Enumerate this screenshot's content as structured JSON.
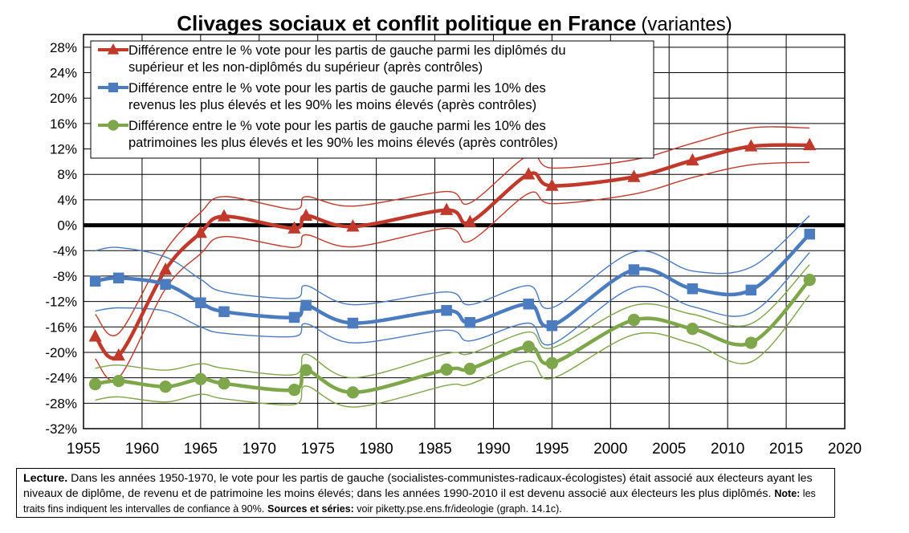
{
  "chart_data": {
    "type": "line",
    "title": "Clivages sociaux et conflit politique en France",
    "subtitle": "(variantes)",
    "xlabel": "",
    "ylabel": "",
    "xlim": [
      1955,
      2020
    ],
    "ylim": [
      -32,
      30
    ],
    "x_ticks": [
      "1955",
      "1960",
      "1965",
      "1970",
      "1975",
      "1980",
      "1985",
      "1990",
      "1995",
      "2000",
      "2005",
      "2010",
      "2015",
      "2020"
    ],
    "y_ticks": [
      "28%",
      "24%",
      "20%",
      "16%",
      "12%",
      "8%",
      "4%",
      "0%",
      "-4%",
      "-8%",
      "-12%",
      "-16%",
      "-20%",
      "-24%",
      "-28%",
      "-32%"
    ],
    "grid": true,
    "legend_position": "top-left",
    "series": [
      {
        "name_line1": "Différence entre le % vote pour les partis de gauche parmi les diplômés du",
        "name_line2": "supérieur et les non-diplômés du supérieur (après contrôles)",
        "color": "#c0392b",
        "marker": "triangle",
        "x": [
          1956,
          1958,
          1962,
          1965,
          1967,
          1973,
          1974,
          1978,
          1986,
          1988,
          1993,
          1995,
          2002,
          2007,
          2012,
          2017
        ],
        "values": [
          -17.5,
          -20.5,
          -7,
          -1.2,
          1.4,
          -0.5,
          1.5,
          -0.2,
          2.4,
          0.5,
          8,
          6.2,
          7.6,
          10.2,
          12.4,
          12.6
        ],
        "ci_upper": [
          -14,
          -17,
          -4,
          2,
          4.5,
          2.5,
          4.5,
          3,
          5.3,
          3.5,
          11,
          9,
          10.3,
          12.9,
          15.3,
          15.3
        ],
        "ci_lower": [
          -21,
          -24,
          -10,
          -4.5,
          -1.8,
          -3.5,
          -1.5,
          -3.4,
          -0.5,
          -2.5,
          5,
          3.4,
          4.9,
          7.5,
          9.5,
          9.9
        ]
      },
      {
        "name_line1": "Différence entre le % vote pour les partis de gauche parmi les 10% des",
        "name_line2": "revenus les plus élevés et les 90% les moins élevés (après contrôles)",
        "color": "#4a7cbf",
        "marker": "square",
        "x": [
          1956,
          1958,
          1962,
          1965,
          1967,
          1973,
          1974,
          1978,
          1986,
          1988,
          1993,
          1995,
          2002,
          2007,
          2012,
          2017
        ],
        "values": [
          -8.8,
          -8.3,
          -9.3,
          -12.2,
          -13.6,
          -14.5,
          -12.6,
          -15.4,
          -13.4,
          -15.3,
          -12.4,
          -15.8,
          -7,
          -10,
          -10.2,
          -1.4
        ],
        "ci_upper": [
          -4,
          -3.5,
          -5,
          -8.5,
          -10.5,
          -11.5,
          -9.5,
          -12.5,
          -10.5,
          -12.5,
          -9.5,
          -13,
          -4.2,
          -7.2,
          -6.6,
          1.5
        ],
        "ci_lower": [
          -13.5,
          -13,
          -13.5,
          -16,
          -17,
          -17.5,
          -15.5,
          -18.5,
          -16.5,
          -18.2,
          -15.4,
          -18.7,
          -9.8,
          -12.8,
          -13.8,
          -4.3
        ]
      },
      {
        "name_line1": "Différence entre le % vote pour les partis de gauche parmi les 10% des",
        "name_line2": "patrimoines les plus élevés et les 90% les moins élevés (après contrôles)",
        "color": "#7ea64a",
        "marker": "circle",
        "x": [
          1956,
          1958,
          1962,
          1965,
          1967,
          1973,
          1974,
          1978,
          1986,
          1988,
          1993,
          1995,
          2002,
          2007,
          2012,
          2017
        ],
        "values": [
          -25,
          -24.5,
          -25.4,
          -24.2,
          -24.9,
          -25.9,
          -22.8,
          -26.3,
          -22.7,
          -22.6,
          -19.1,
          -21.7,
          -14.9,
          -16.3,
          -18.5,
          -8.6
        ],
        "ci_upper": [
          -22.5,
          -22,
          -22.8,
          -21.8,
          -22.5,
          -23.5,
          -20.3,
          -24,
          -20.2,
          -20.2,
          -16.8,
          -19.3,
          -12.6,
          -14,
          -15.5,
          -6.2
        ],
        "ci_lower": [
          -27.5,
          -27,
          -27.8,
          -26.6,
          -27.3,
          -28.2,
          -25.3,
          -28.6,
          -25.2,
          -25,
          -21.4,
          -24.1,
          -17.2,
          -18.6,
          -21.5,
          -11
        ]
      }
    ]
  },
  "note": {
    "lecture_label": "Lecture.",
    "lecture_text": " Dans les années 1950-1970, le vote pour les partis de gauche (socialistes-communistes-radicaux-écologistes) était associé aux électeurs ayant les niveaux de diplôme, de revenu et de patrimoine les moins élevés; dans les années 1990-2010 il est devenu associé aux électeurs les plus diplômés.",
    "note_label": "Note:",
    "note_text": " les traits fins indiquent les intervalles de confiance à 90%.",
    "sources_label": "Sources et séries:",
    "sources_text": " voir piketty.pse.ens.fr/ideologie (graph. 14.1c)."
  }
}
